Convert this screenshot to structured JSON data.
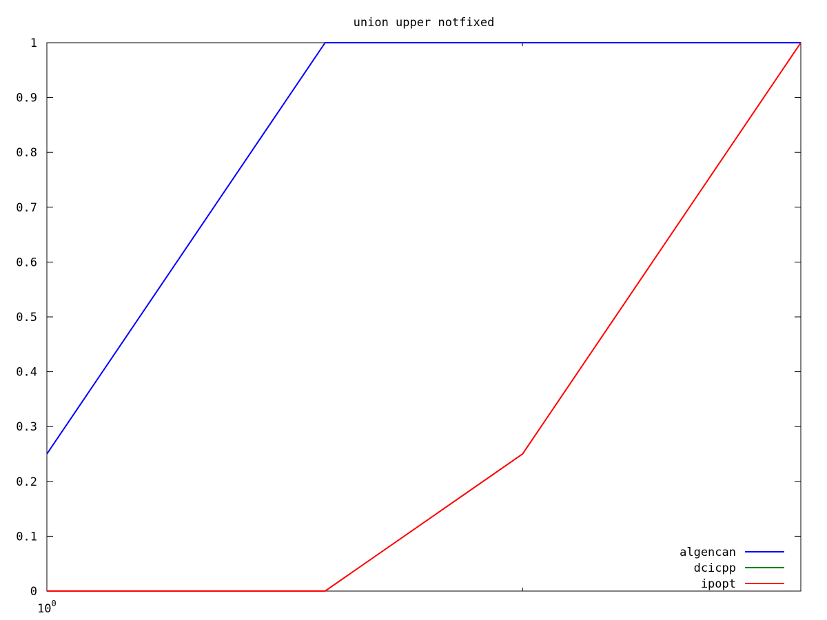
{
  "chart_data": {
    "type": "line",
    "title": "union upper notfixed",
    "xlabel": "",
    "ylabel": "",
    "x_scale": "log",
    "x_tick_labels": [
      {
        "base": "10",
        "exponent": "0"
      }
    ],
    "y_ticks": [
      0,
      0.1,
      0.2,
      0.3,
      0.4,
      0.5,
      0.6,
      0.7,
      0.8,
      0.9,
      1
    ],
    "y_tick_labels": [
      "0",
      "0.1",
      "0.2",
      "0.3",
      "0.4",
      "0.5",
      "0.6",
      "0.7",
      "0.8",
      "0.9",
      "1"
    ],
    "ylim": [
      0,
      1
    ],
    "xlim": [
      1,
      3
    ],
    "x_minor_ticks": [
      2
    ],
    "x_minor_ticks_note": "",
    "grid": false,
    "legend_position": "bottom-right",
    "series": [
      {
        "name": "algencan",
        "color": "#0000ff",
        "x": [
          1,
          1.5,
          3
        ],
        "y": [
          0.25,
          1,
          1
        ]
      },
      {
        "name": "dcicpp",
        "color": "#008000",
        "x": [],
        "y": []
      },
      {
        "name": "ipopt",
        "color": "#ff0000",
        "x": [
          1,
          1.5,
          2,
          3
        ],
        "y": [
          0,
          0,
          0.25,
          1
        ]
      }
    ]
  }
}
